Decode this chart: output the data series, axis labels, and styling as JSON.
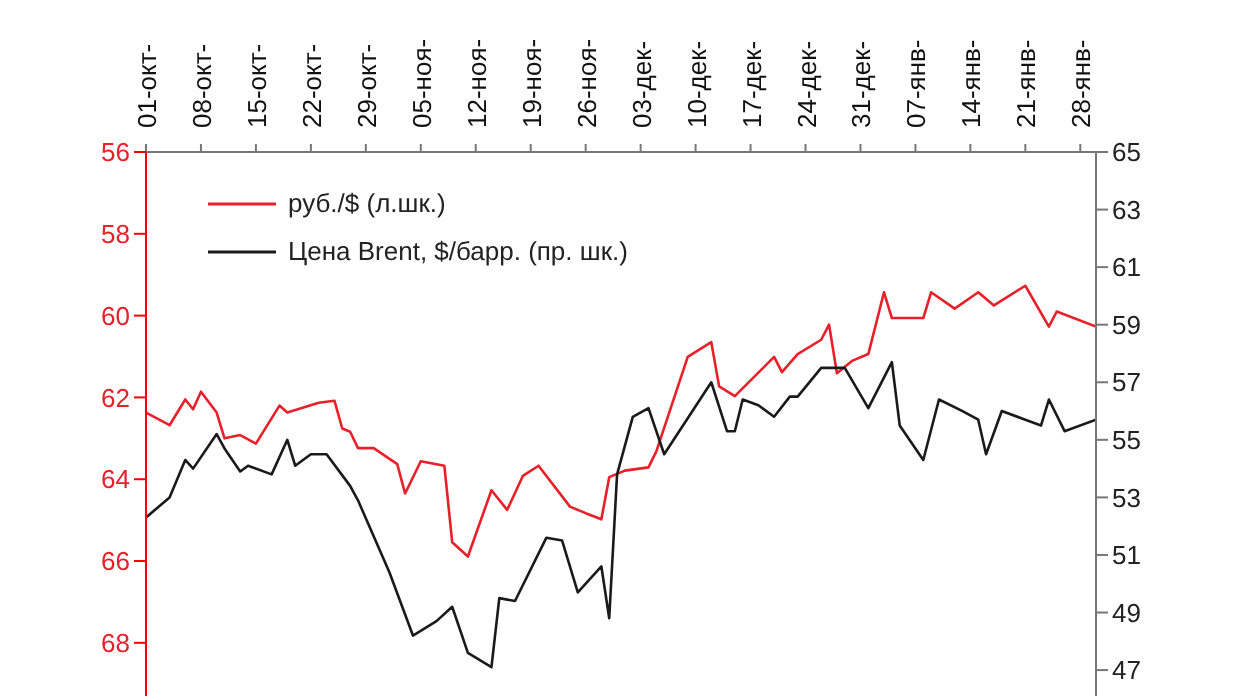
{
  "chart_data": {
    "type": "line",
    "categories": [
      "01-окт-",
      null,
      null,
      null,
      null,
      null,
      null,
      "08-окт-",
      null,
      null,
      null,
      null,
      null,
      null,
      "15-окт-",
      null,
      null,
      null,
      null,
      null,
      null,
      "22-окт-",
      null,
      null,
      null,
      null,
      null,
      null,
      "29-окт-",
      null,
      null,
      null,
      null,
      null,
      null,
      "05-ноя-",
      null,
      null,
      null,
      null,
      null,
      null,
      "12-ноя-",
      null,
      null,
      null,
      null,
      null,
      null,
      "19-ноя-",
      null,
      null,
      null,
      null,
      null,
      null,
      "26-ноя-",
      null,
      null,
      null,
      null,
      null,
      null,
      "03-дек-",
      null,
      null,
      null,
      null,
      null,
      null,
      "10-дек-",
      null,
      null,
      null,
      null,
      null,
      null,
      "17-дек-",
      null,
      null,
      null,
      null,
      null,
      null,
      "24-дек-",
      null,
      null,
      null,
      null,
      null,
      null,
      "31-дек-",
      null,
      null,
      null,
      null,
      null,
      null,
      "07-янв-",
      null,
      null,
      null,
      null,
      null,
      null,
      "14-янв-",
      null,
      null,
      null,
      null,
      null,
      null,
      "21-янв-",
      null,
      null,
      null,
      null,
      null,
      null,
      "28-янв-",
      null,
      null
    ],
    "ylim": [
      69.3,
      56
    ],
    "yticks": [
      56,
      58,
      60,
      62,
      64,
      66,
      68
    ],
    "y2lim": [
      46.1,
      65
    ],
    "y2ticks": [
      47,
      49,
      51,
      53,
      55,
      57,
      59,
      61,
      63,
      65
    ],
    "legend": "top left",
    "marker": "none",
    "line_style": "solid",
    "series": [
      {
        "name": "руб./$ (л.шк.)",
        "color": "#e8202a",
        "axis": "y",
        "values": [
          62.37,
          null,
          null,
          62.68,
          null,
          62.05,
          62.29,
          61.86,
          null,
          62.37,
          63.0,
          null,
          62.92,
          null,
          63.13,
          null,
          null,
          62.2,
          62.37,
          null,
          null,
          null,
          62.13,
          null,
          62.08,
          62.76,
          62.84,
          63.24,
          null,
          63.24,
          null,
          null,
          63.63,
          64.35,
          null,
          63.56,
          null,
          null,
          63.67,
          65.54,
          null,
          65.89,
          null,
          null,
          64.27,
          null,
          64.75,
          null,
          63.92,
          null,
          63.67,
          null,
          null,
          null,
          64.67,
          null,
          64.83,
          null,
          64.98,
          63.95,
          null,
          63.79,
          null,
          null,
          63.71,
          63.32,
          null,
          null,
          null,
          61.01,
          null,
          null,
          60.65,
          61.73,
          null,
          61.97,
          null,
          null,
          null,
          null,
          61.01,
          61.38,
          null,
          60.94,
          null,
          null,
          60.59,
          60.22,
          61.41,
          null,
          61.1,
          null,
          60.94,
          null,
          59.43,
          60.06,
          null,
          null,
          null,
          60.06,
          59.43,
          null,
          null,
          59.83,
          null,
          null,
          59.43,
          null,
          59.75,
          null,
          null,
          null,
          59.27,
          null,
          null,
          60.27,
          59.9,
          null,
          null,
          null,
          null,
          60.27
        ]
      },
      {
        "name": "Цена Brent, $/барр. (пр. шк.)",
        "color": "#1a1a1a",
        "axis": "y2",
        "values": [
          52.3,
          null,
          null,
          53.0,
          null,
          54.3,
          54.0,
          null,
          null,
          55.2,
          54.7,
          null,
          53.9,
          54.1,
          null,
          null,
          53.8,
          null,
          55.0,
          54.1,
          null,
          54.5,
          null,
          54.5,
          null,
          null,
          53.4,
          52.9,
          null,
          null,
          null,
          50.4,
          null,
          null,
          48.2,
          null,
          null,
          48.7,
          null,
          49.2,
          null,
          47.6,
          null,
          null,
          47.1,
          49.5,
          null,
          49.4,
          null,
          null,
          null,
          51.6,
          null,
          51.5,
          null,
          49.7,
          null,
          null,
          50.6,
          48.8,
          53.8,
          null,
          55.8,
          null,
          56.1,
          null,
          54.5,
          null,
          null,
          null,
          null,
          null,
          57.0,
          null,
          55.3,
          55.3,
          56.4,
          null,
          56.2,
          null,
          55.8,
          null,
          56.5,
          56.5,
          null,
          null,
          57.5,
          null,
          null,
          57.5,
          null,
          null,
          56.1,
          null,
          null,
          57.7,
          55.5,
          null,
          null,
          54.3,
          null,
          56.4,
          null,
          null,
          56.0,
          null,
          55.7,
          54.5,
          null,
          56.0,
          null,
          null,
          55.7,
          null,
          55.5,
          56.4,
          null,
          55.3,
          null,
          null,
          null,
          55.7
        ]
      }
    ]
  }
}
